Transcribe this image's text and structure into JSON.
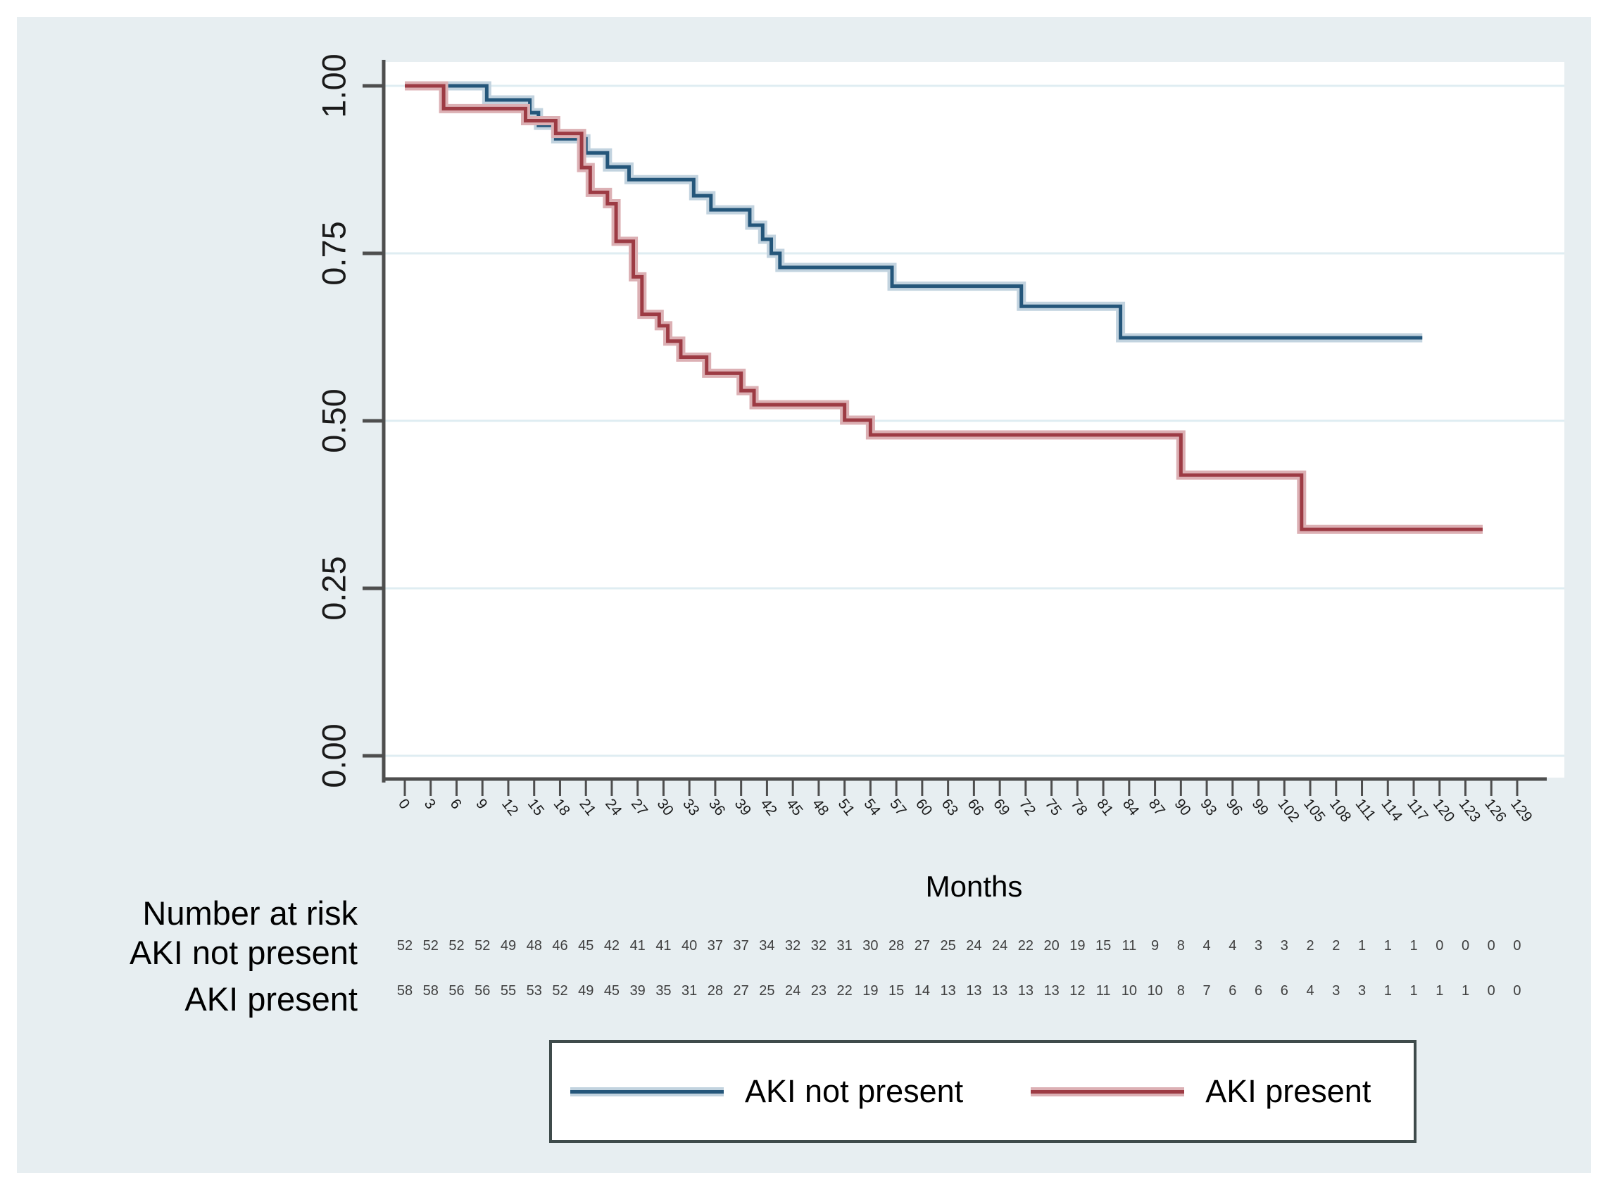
{
  "colors": {
    "panel_bg": "#e7eef1",
    "plot_bg": "#ffffff",
    "grid": "#dfedf2",
    "axis": "#4e4e4e",
    "tick_text": "#1a1a1a",
    "risk_number_text": "#3f3f3f",
    "blue": "#24567a",
    "blue_halo": "#c2d3df",
    "red": "#9d3b44",
    "red_halo": "#dcb0b4"
  },
  "chart_data": {
    "type": "line",
    "subtype": "kaplan-meier-survival",
    "title": "",
    "xlabel": "Months",
    "ylabel": "",
    "grid": "horizontal",
    "xlim": [
      0,
      132
    ],
    "ylim": [
      0.0,
      1.0
    ],
    "yticks": [
      "0.00",
      "0.25",
      "0.50",
      "0.75",
      "1.00"
    ],
    "ytick_values": [
      0,
      0.25,
      0.5,
      0.75,
      1
    ],
    "xticks": [
      0,
      3,
      6,
      9,
      12,
      15,
      18,
      21,
      24,
      27,
      30,
      33,
      36,
      39,
      42,
      45,
      48,
      51,
      54,
      57,
      60,
      63,
      66,
      69,
      72,
      75,
      78,
      81,
      84,
      87,
      90,
      93,
      96,
      99,
      102,
      105,
      108,
      111,
      114,
      117,
      120,
      123,
      126,
      129
    ],
    "series": [
      {
        "name": "AKI not present",
        "color": "#24567a",
        "halo": "#c2d3df",
        "steps": [
          [
            0,
            1.0
          ],
          [
            9.5,
            0.979
          ],
          [
            14.5,
            0.96
          ],
          [
            15.5,
            0.941
          ],
          [
            17.5,
            0.921
          ],
          [
            21,
            0.9
          ],
          [
            23.5,
            0.879
          ],
          [
            26,
            0.86
          ],
          [
            33.5,
            0.836
          ],
          [
            35.5,
            0.815
          ],
          [
            40,
            0.792
          ],
          [
            41.5,
            0.771
          ],
          [
            42.5,
            0.75
          ],
          [
            43.5,
            0.729
          ],
          [
            56.5,
            0.701
          ],
          [
            71.5,
            0.671
          ],
          [
            83,
            0.624
          ]
        ],
        "end_month": 118
      },
      {
        "name": "AKI present",
        "color": "#9d3b44",
        "halo": "#dcb0b4",
        "steps": [
          [
            0,
            1.0
          ],
          [
            4.5,
            0.966
          ],
          [
            14,
            0.948
          ],
          [
            17.5,
            0.929
          ],
          [
            20.5,
            0.878
          ],
          [
            21.5,
            0.841
          ],
          [
            23.5,
            0.824
          ],
          [
            24.5,
            0.768
          ],
          [
            26.5,
            0.715
          ],
          [
            27.5,
            0.659
          ],
          [
            29.5,
            0.642
          ],
          [
            30.5,
            0.619
          ],
          [
            32,
            0.595
          ],
          [
            35,
            0.571
          ],
          [
            39,
            0.545
          ],
          [
            40.5,
            0.524
          ],
          [
            51,
            0.501
          ],
          [
            54,
            0.479
          ],
          [
            90,
            0.419
          ],
          [
            104,
            0.338
          ]
        ],
        "end_month": 125
      }
    ],
    "risk_table": {
      "title": "Number at risk",
      "rows": [
        {
          "label": "AKI not present",
          "values": [
            52,
            52,
            52,
            52,
            49,
            48,
            46,
            45,
            42,
            41,
            41,
            40,
            37,
            37,
            34,
            32,
            32,
            31,
            30,
            28,
            27,
            25,
            24,
            24,
            22,
            20,
            19,
            15,
            11,
            9,
            8,
            4,
            4,
            3,
            3,
            2,
            2,
            1,
            1,
            1,
            0,
            0,
            0,
            0
          ]
        },
        {
          "label": "AKI present",
          "values": [
            58,
            58,
            56,
            56,
            55,
            53,
            52,
            49,
            45,
            39,
            35,
            31,
            28,
            27,
            25,
            24,
            23,
            22,
            19,
            15,
            14,
            13,
            13,
            13,
            13,
            13,
            12,
            11,
            10,
            10,
            8,
            7,
            6,
            6,
            6,
            4,
            3,
            3,
            1,
            1,
            1,
            1,
            0,
            0
          ]
        }
      ]
    },
    "legend": {
      "position": "bottom-center",
      "entries": [
        {
          "label": "AKI not present",
          "color": "#24567a"
        },
        {
          "label": "AKI present",
          "color": "#9d3b44"
        }
      ]
    }
  }
}
